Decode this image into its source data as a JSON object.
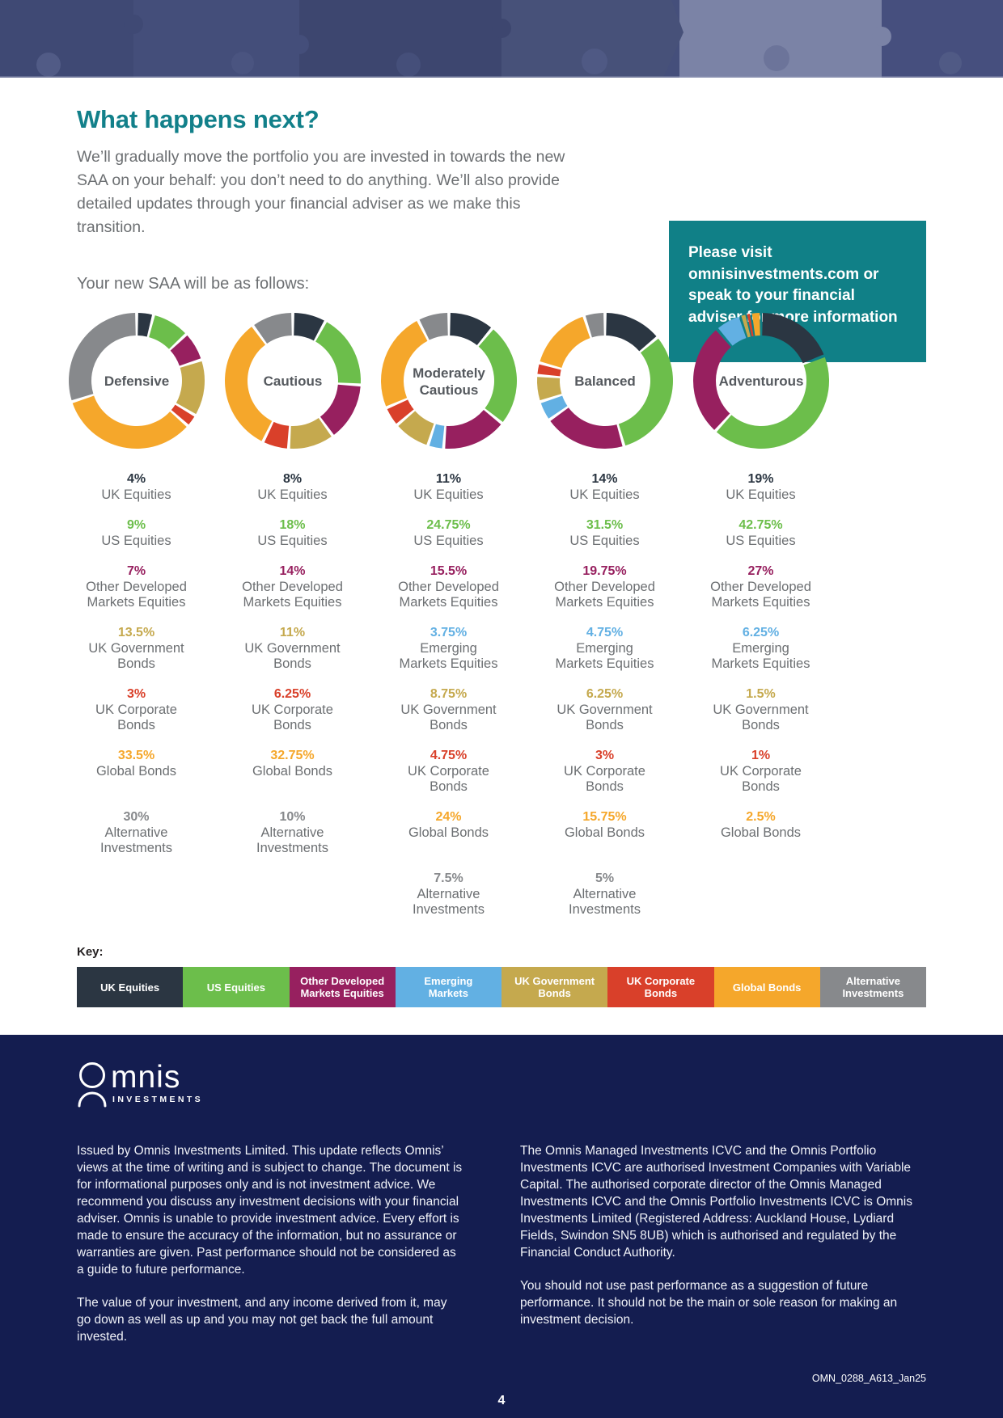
{
  "header": {
    "title": "What happens next?",
    "intro": "We’ll gradually move the portfolio you are invested in towards the new SAA on your behalf: you don’t need to do anything. We’ll also provide detailed updates through your financial adviser as we make this transition.",
    "callout": "Please visit omnisinvestments.com or speak to your financial adviser for more information",
    "saa_line": "Your new SAA will be as follows:"
  },
  "colors": {
    "teal": "#108087",
    "footer_navy": "#141D50",
    "body_grey": "#6C6F72",
    "chart_name_grey": "#55595E"
  },
  "asset_classes": {
    "uk_equities": {
      "name": "UK Equities",
      "lines": [
        "UK Equities"
      ],
      "color": "#2B3642"
    },
    "us_equities": {
      "name": "US Equities",
      "lines": [
        "US Equities"
      ],
      "color": "#6CBE4B"
    },
    "other_developed": {
      "name": "Other Developed Markets Equities",
      "lines": [
        "Other Developed",
        "Markets Equities"
      ],
      "color": "#97205F"
    },
    "emerging": {
      "name": "Emerging Markets Equities",
      "lines": [
        "Emerging",
        "Markets Equities"
      ],
      "color": "#62B0E3"
    },
    "uk_gov": {
      "name": "UK Government Bonds",
      "lines": [
        "UK Government",
        "Bonds"
      ],
      "color": "#C5A94E"
    },
    "uk_corp": {
      "name": "UK Corporate Bonds",
      "lines": [
        "UK Corporate",
        "Bonds"
      ],
      "color": "#D9402A"
    },
    "global_bonds": {
      "name": "Global Bonds",
      "lines": [
        "Global Bonds"
      ],
      "color": "#F5A72B"
    },
    "alternative": {
      "name": "Alternative Investments",
      "lines": [
        "Alternative",
        "Investments"
      ],
      "color": "#87898C"
    }
  },
  "chart_data": [
    {
      "type": "pie",
      "name": "Defensive",
      "name_lines": [
        "Defensive"
      ],
      "segments": [
        {
          "class": "uk_equities",
          "pct": "4%",
          "value": 4
        },
        {
          "class": "us_equities",
          "pct": "9%",
          "value": 9
        },
        {
          "class": "other_developed",
          "pct": "7%",
          "value": 7
        },
        {
          "class": "uk_gov",
          "pct": "13.5%",
          "value": 13.5
        },
        {
          "class": "uk_corp",
          "pct": "3%",
          "value": 3
        },
        {
          "class": "global_bonds",
          "pct": "33.5%",
          "value": 33.5
        },
        {
          "class": "alternative",
          "pct": "30%",
          "value": 30
        }
      ]
    },
    {
      "type": "pie",
      "name": "Cautious",
      "name_lines": [
        "Cautious"
      ],
      "segments": [
        {
          "class": "uk_equities",
          "pct": "8%",
          "value": 8
        },
        {
          "class": "us_equities",
          "pct": "18%",
          "value": 18
        },
        {
          "class": "other_developed",
          "pct": "14%",
          "value": 14
        },
        {
          "class": "uk_gov",
          "pct": "11%",
          "value": 11
        },
        {
          "class": "uk_corp",
          "pct": "6.25%",
          "value": 6.25
        },
        {
          "class": "global_bonds",
          "pct": "32.75%",
          "value": 32.75
        },
        {
          "class": "alternative",
          "pct": "10%",
          "value": 10
        }
      ]
    },
    {
      "type": "pie",
      "name": "Moderately Cautious",
      "name_lines": [
        "Moderately",
        "Cautious"
      ],
      "segments": [
        {
          "class": "uk_equities",
          "pct": "11%",
          "value": 11
        },
        {
          "class": "us_equities",
          "pct": "24.75%",
          "value": 24.75
        },
        {
          "class": "other_developed",
          "pct": "15.5%",
          "value": 15.5
        },
        {
          "class": "emerging",
          "pct": "3.75%",
          "value": 3.75
        },
        {
          "class": "uk_gov",
          "pct": "8.75%",
          "value": 8.75
        },
        {
          "class": "uk_corp",
          "pct": "4.75%",
          "value": 4.75
        },
        {
          "class": "global_bonds",
          "pct": "24%",
          "value": 24
        },
        {
          "class": "alternative",
          "pct": "7.5%",
          "value": 7.5
        }
      ]
    },
    {
      "type": "pie",
      "name": "Balanced",
      "name_lines": [
        "Balanced"
      ],
      "segments": [
        {
          "class": "uk_equities",
          "pct": "14%",
          "value": 14
        },
        {
          "class": "us_equities",
          "pct": "31.5%",
          "value": 31.5
        },
        {
          "class": "other_developed",
          "pct": "19.75%",
          "value": 19.75
        },
        {
          "class": "emerging",
          "pct": "4.75%",
          "value": 4.75
        },
        {
          "class": "uk_gov",
          "pct": "6.25%",
          "value": 6.25
        },
        {
          "class": "uk_corp",
          "pct": "3%",
          "value": 3
        },
        {
          "class": "global_bonds",
          "pct": "15.75%",
          "value": 15.75
        },
        {
          "class": "alternative",
          "pct": "5%",
          "value": 5
        }
      ]
    },
    {
      "type": "pie",
      "name": "Adventurous",
      "name_lines": [
        "Adventurous"
      ],
      "segments": [
        {
          "class": "uk_equities",
          "pct": "19%",
          "value": 19
        },
        {
          "class": "us_equities",
          "pct": "42.75%",
          "value": 42.75
        },
        {
          "class": "other_developed",
          "pct": "27%",
          "value": 27
        },
        {
          "class": "emerging",
          "pct": "6.25%",
          "value": 6.25
        },
        {
          "class": "uk_gov",
          "pct": "1.5%",
          "value": 1.5
        },
        {
          "class": "uk_corp",
          "pct": "1%",
          "value": 1
        },
        {
          "class": "global_bonds",
          "pct": "2.5%",
          "value": 2.5
        }
      ]
    }
  ],
  "key": {
    "label": "Key:",
    "items": [
      {
        "class": "uk_equities",
        "lines": [
          "UK Equities"
        ]
      },
      {
        "class": "us_equities",
        "lines": [
          "US Equities"
        ]
      },
      {
        "class": "other_developed",
        "lines": [
          "Other Developed",
          "Markets Equities"
        ]
      },
      {
        "class": "emerging",
        "lines": [
          "Emerging",
          "Markets"
        ]
      },
      {
        "class": "uk_gov",
        "lines": [
          "UK Government",
          "Bonds"
        ]
      },
      {
        "class": "uk_corp",
        "lines": [
          "UK Corporate",
          "Bonds"
        ]
      },
      {
        "class": "global_bonds",
        "lines": [
          "Global Bonds"
        ]
      },
      {
        "class": "alternative",
        "lines": [
          "Alternative",
          "Investments"
        ]
      }
    ]
  },
  "footer": {
    "logo": {
      "word": "mnis",
      "sub": "INVESTMENTS"
    },
    "left_paragraphs": [
      "Issued by Omnis Investments Limited. This update reflects Omnis’ views at the time of writing and is subject to change. The document is for informational purposes only and is not investment advice. We recommend you discuss any investment decisions with your financial adviser. Omnis is unable to provide investment advice. Every effort is made to ensure the accuracy of the information, but no assurance or warranties are given. Past performance should not be considered as a guide to future performance.",
      "The value of your investment, and any income derived from it, may go down as well as up and you may not get back the full amount invested."
    ],
    "right_paragraphs": [
      "The Omnis Managed Investments ICVC and the Omnis Portfolio Investments ICVC are authorised Investment Companies with Variable Capital. The authorised corporate director of the Omnis Managed Investments ICVC and the Omnis Portfolio Investments ICVC is Omnis Investments Limited (Registered Address: Auckland House, Lydiard Fields, Swindon SN5 8UB) which is authorised and regulated by the Financial Conduct Authority.",
      "You should not use past performance as a suggestion of future performance. It should not be the main or sole reason for making an investment decision."
    ],
    "doc_code": "OMN_0288_A613_Jan25",
    "page_number": "4"
  }
}
